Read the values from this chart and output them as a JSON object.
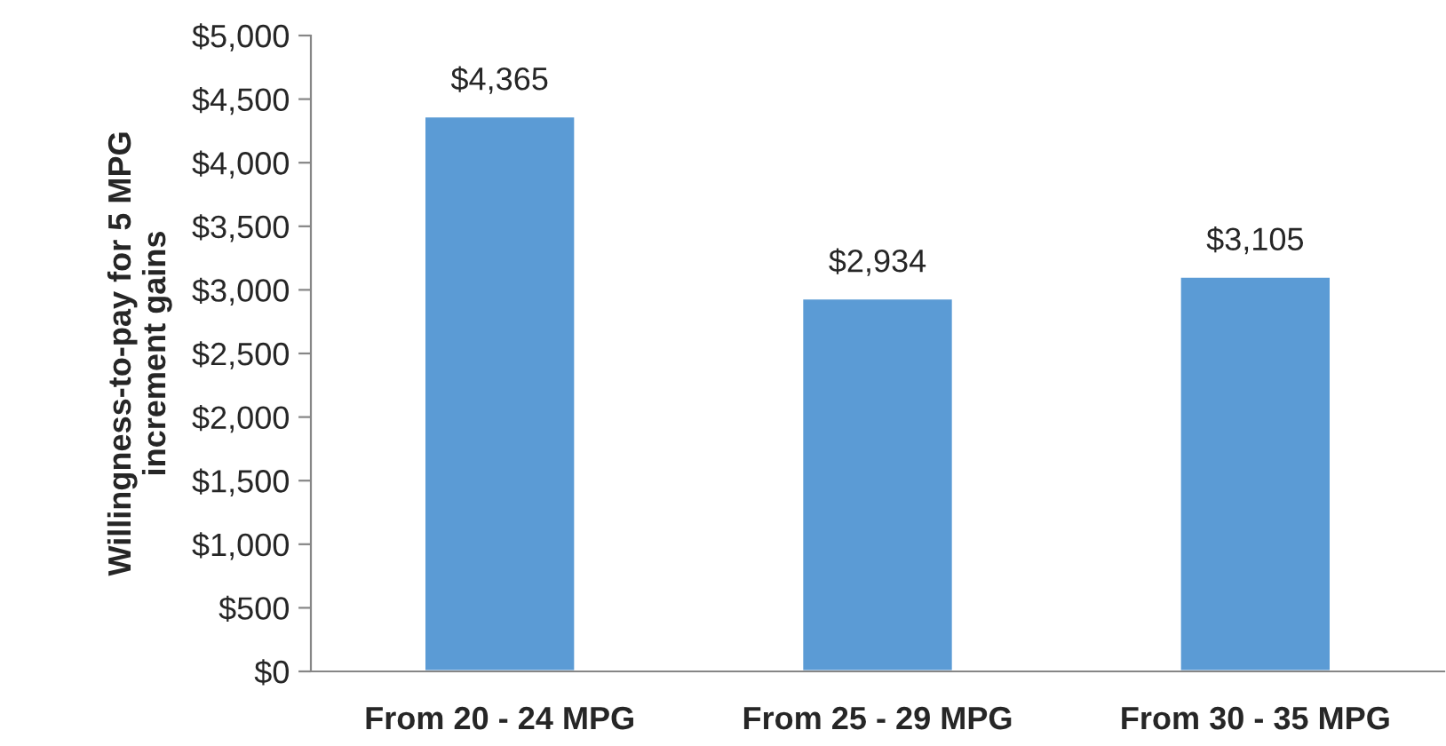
{
  "chart_data": {
    "type": "bar",
    "ylabel": "Willingness-to-pay for 5 MPG\nincrement gains",
    "categories": [
      "From 20 - 24 MPG",
      "From 25 - 29 MPG",
      "From 30 - 35 MPG"
    ],
    "values": [
      4365,
      2934,
      3105
    ],
    "color": "#5b9bd5",
    "value_labels": [
      "$4,365",
      "$2,934",
      "$3,105"
    ],
    "ylim": [
      0,
      5000
    ],
    "yticks": [
      {
        "value": 0,
        "label": "$0"
      },
      {
        "value": 500,
        "label": "$500"
      },
      {
        "value": 1000,
        "label": "$1,000"
      },
      {
        "value": 1500,
        "label": "$1,500"
      },
      {
        "value": 2000,
        "label": "$2,000"
      },
      {
        "value": 2500,
        "label": "$2,500"
      },
      {
        "value": 3000,
        "label": "$3,000"
      },
      {
        "value": 3500,
        "label": "$3,500"
      },
      {
        "value": 4000,
        "label": "$4,000"
      },
      {
        "value": 4500,
        "label": "$4,500"
      },
      {
        "value": 5000,
        "label": "$5,000"
      }
    ],
    "grid": false,
    "legend": false
  }
}
